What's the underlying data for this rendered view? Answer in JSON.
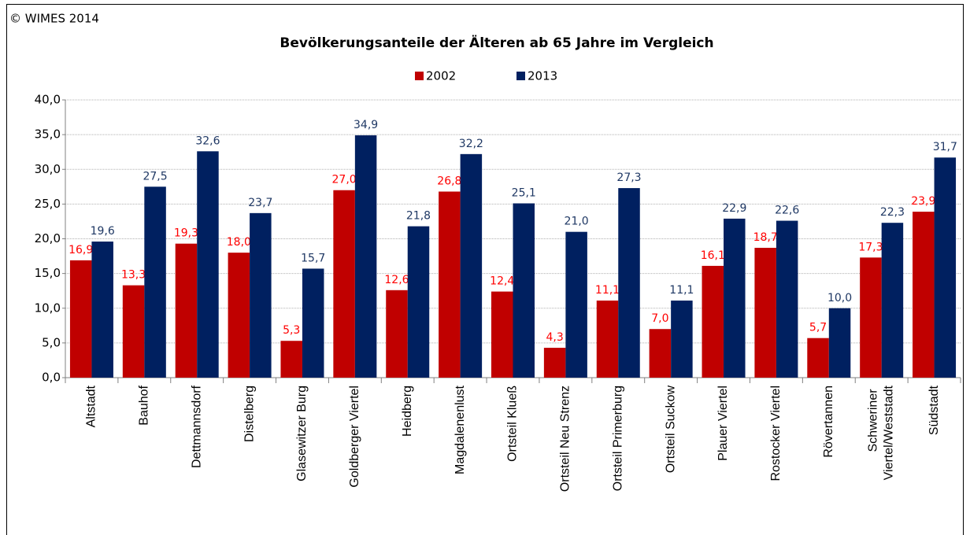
{
  "chart_data": {
    "type": "bar",
    "copyright": "© WIMES 2014",
    "title": "Bevölkerungsanteile der Älteren ab 65 Jahre im Vergleich",
    "categories": [
      "Altstadt",
      "Bauhof",
      "Dettmannsdorf",
      "Distelberg",
      "Glasewitzer Burg",
      "Goldberger Viertel",
      "Heidberg",
      "Magdalenenlust",
      "Ortsteil Klueß",
      "Ortsteil Neu Strenz",
      "Ortsteil Primerburg",
      "Ortsteil Suckow",
      "Plauer Viertel",
      "Rostocker Viertel",
      "Rövertannen",
      "Schweriner Viertel/Weststadt",
      "Südstadt"
    ],
    "series": [
      {
        "name": "2002",
        "color": "#c00000",
        "label_color": "#ff0000",
        "values": [
          16.9,
          13.3,
          19.3,
          18.0,
          5.3,
          27.0,
          12.6,
          26.8,
          12.4,
          4.3,
          11.1,
          7.0,
          16.1,
          18.7,
          5.7,
          17.3,
          23.9
        ],
        "value_labels": [
          "16,9",
          "13,3",
          "19,3",
          "18,0",
          "5,3",
          "27,0",
          "12,6",
          "26,8",
          "12,4",
          "4,3",
          "11,1",
          "7,0",
          "16,1",
          "18,7",
          "5,7",
          "17,3",
          "23,9"
        ]
      },
      {
        "name": "2013",
        "color": "#002060",
        "label_color": "#1f3864",
        "values": [
          19.6,
          27.5,
          32.6,
          23.7,
          15.7,
          34.9,
          21.8,
          32.2,
          25.1,
          21.0,
          27.3,
          11.1,
          22.9,
          22.6,
          10.0,
          22.3,
          31.7
        ],
        "value_labels": [
          "19,6",
          "27,5",
          "32,6",
          "23,7",
          "15,7",
          "34,9",
          "21,8",
          "32,2",
          "25,1",
          "21,0",
          "27,3",
          "11,1",
          "22,9",
          "22,6",
          "10,0",
          "22,3",
          "31,7"
        ]
      }
    ],
    "ylim": [
      0,
      40
    ],
    "yticks": [
      {
        "value": 0,
        "label": "0,0"
      },
      {
        "value": 5,
        "label": "5,0"
      },
      {
        "value": 10,
        "label": "10,0"
      },
      {
        "value": 15,
        "label": "15,0"
      },
      {
        "value": 20,
        "label": "20,0"
      },
      {
        "value": 25,
        "label": "25,0"
      },
      {
        "value": 30,
        "label": "30,0"
      },
      {
        "value": 35,
        "label": "35,0"
      },
      {
        "value": 40,
        "label": "40,0"
      }
    ],
    "grid": true
  }
}
